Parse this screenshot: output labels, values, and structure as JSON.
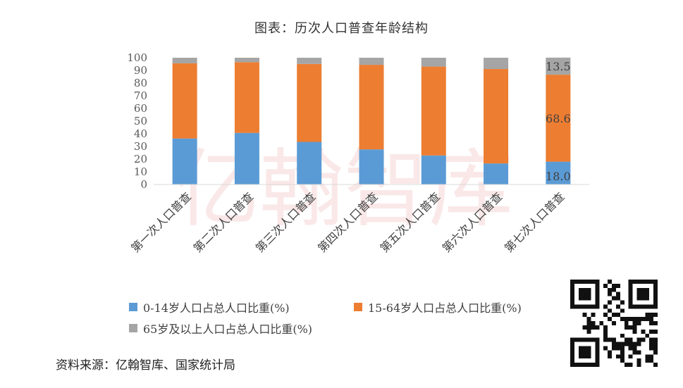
{
  "title": "图表：历次人口普查年龄结构",
  "chart_data": {
    "type": "bar",
    "stacked": true,
    "categories": [
      "第一次人口普查",
      "第二次人口普查",
      "第三次人口普查",
      "第四次人口普查",
      "第五次人口普查",
      "第六次人口普查",
      "第七次人口普查"
    ],
    "series": [
      {
        "name": "0-14岁人口占总人口比重(%)",
        "color": "#5B9BD5",
        "values": [
          36.3,
          40.7,
          33.6,
          27.7,
          22.9,
          16.6,
          18.0
        ]
      },
      {
        "name": "15-64岁人口占总人口比重(%)",
        "color": "#ED7D31",
        "values": [
          59.3,
          55.8,
          61.5,
          66.7,
          70.1,
          74.5,
          68.6
        ]
      },
      {
        "name": "65岁及以上人口占总人口比重(%)",
        "color": "#A5A5A5",
        "values": [
          4.4,
          3.5,
          4.9,
          5.6,
          7.0,
          8.9,
          13.5
        ]
      }
    ],
    "data_labels": {
      "category_index": 6,
      "labels": [
        "18.0",
        "68.6",
        "13.5"
      ]
    },
    "yticks": [
      "0",
      "10",
      "20",
      "30",
      "40",
      "50",
      "60",
      "70",
      "80",
      "90",
      "100"
    ],
    "ylim": [
      0,
      100
    ],
    "legend_position": "bottom",
    "grid": false
  },
  "source": "资料来源：亿翰智库、国家统计局",
  "watermark": {
    "text": "亿翰智库",
    "color": "#F2C4C4"
  },
  "qr_code": {
    "icon": "qr-code-icon"
  }
}
